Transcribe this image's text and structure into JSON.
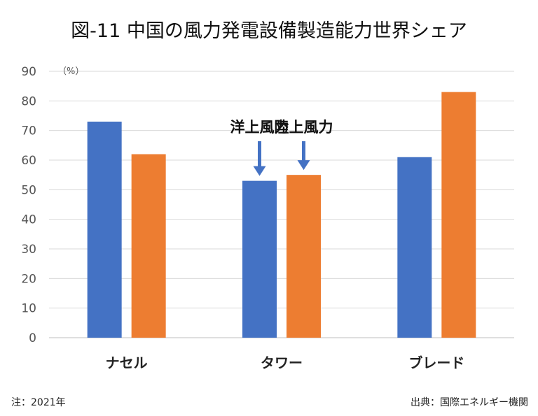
{
  "title": "図-11 中国の風力発電設備製造能力世界シェア",
  "note": "注：2021年",
  "source": "出典：国際エネルギー機関",
  "chart_data": {
    "type": "bar",
    "categories": [
      "ナセル",
      "タワー",
      "ブレード"
    ],
    "series": [
      {
        "name": "洋上風力",
        "values": [
          73,
          53,
          61
        ],
        "color": "#4472c4"
      },
      {
        "name": "陸上風力",
        "values": [
          62,
          55,
          83
        ],
        "color": "#ed7d31"
      }
    ],
    "ylim": [
      0,
      90
    ],
    "yticks": [
      0,
      10,
      20,
      30,
      40,
      50,
      60,
      70,
      80,
      90
    ],
    "unit_label": "（%）",
    "grid": true
  }
}
